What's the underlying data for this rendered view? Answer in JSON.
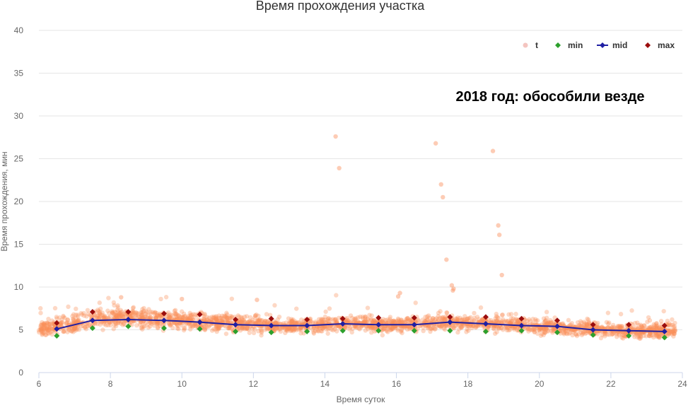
{
  "chart_data": {
    "type": "scatter",
    "title": "Время прохождения участка",
    "annotation": "2018 год: обособили везде",
    "xlabel": "Время суток",
    "ylabel": "Время прохождения, мин",
    "xlim": [
      6,
      24
    ],
    "ylim": [
      0,
      40
    ],
    "x_ticks": [
      6,
      8,
      10,
      12,
      14,
      16,
      18,
      20,
      22,
      24
    ],
    "y_ticks": [
      0,
      5,
      10,
      15,
      20,
      25,
      30,
      35,
      40
    ],
    "grid": "horizontal",
    "legend_position": "top-right",
    "colors": {
      "t": "#fa8e5a",
      "t_legend": "#f4c5c0",
      "min": "#2ca02c",
      "mid": "#1f1fa3",
      "max": "#9b0d0d",
      "grid": "#e6e6e6",
      "axis": "#ccd6eb"
    },
    "series": [
      {
        "name": "t",
        "type": "scatter",
        "band": [
          [
            6.0,
            5.2,
            0.7
          ],
          [
            6.5,
            5.3,
            0.7
          ],
          [
            7.0,
            5.8,
            0.8
          ],
          [
            7.5,
            6.2,
            0.8
          ],
          [
            8.0,
            6.4,
            0.8
          ],
          [
            8.5,
            6.4,
            0.8
          ],
          [
            9.0,
            6.3,
            0.8
          ],
          [
            9.5,
            6.2,
            0.8
          ],
          [
            10.0,
            6.1,
            0.7
          ],
          [
            10.5,
            6.0,
            0.7
          ],
          [
            11.0,
            5.8,
            0.7
          ],
          [
            11.5,
            5.7,
            0.7
          ],
          [
            12.0,
            5.6,
            0.7
          ],
          [
            12.5,
            5.5,
            0.6
          ],
          [
            13.0,
            5.5,
            0.6
          ],
          [
            13.5,
            5.5,
            0.6
          ],
          [
            14.0,
            5.6,
            0.6
          ],
          [
            14.5,
            5.7,
            0.6
          ],
          [
            15.0,
            5.7,
            0.6
          ],
          [
            15.5,
            5.6,
            0.6
          ],
          [
            16.0,
            5.6,
            0.6
          ],
          [
            16.5,
            5.7,
            0.6
          ],
          [
            17.0,
            5.8,
            0.6
          ],
          [
            17.5,
            5.9,
            0.6
          ],
          [
            18.0,
            5.8,
            0.6
          ],
          [
            18.5,
            5.7,
            0.6
          ],
          [
            19.0,
            5.6,
            0.6
          ],
          [
            19.5,
            5.5,
            0.6
          ],
          [
            20.0,
            5.4,
            0.6
          ],
          [
            20.5,
            5.3,
            0.6
          ],
          [
            21.0,
            5.2,
            0.6
          ],
          [
            21.5,
            5.1,
            0.6
          ],
          [
            22.0,
            5.0,
            0.6
          ],
          [
            22.5,
            4.9,
            0.6
          ],
          [
            23.0,
            4.9,
            0.6
          ],
          [
            23.8,
            4.9,
            0.6
          ]
        ],
        "outliers": [
          [
            14.3,
            27.6
          ],
          [
            14.4,
            23.9
          ],
          [
            17.1,
            26.8
          ],
          [
            17.25,
            22.0
          ],
          [
            17.3,
            20.5
          ],
          [
            17.4,
            13.2
          ],
          [
            17.55,
            10.2
          ],
          [
            17.6,
            9.8
          ],
          [
            17.58,
            9.6
          ],
          [
            18.7,
            25.9
          ],
          [
            18.85,
            17.2
          ],
          [
            18.88,
            16.1
          ],
          [
            18.95,
            11.4
          ],
          [
            16.1,
            9.3
          ],
          [
            16.05,
            8.9
          ],
          [
            12.1,
            8.5
          ],
          [
            8.3,
            8.8
          ],
          [
            10.0,
            8.6
          ]
        ]
      },
      {
        "name": "min",
        "type": "scatter",
        "marker": "diamond",
        "points": [
          [
            6.5,
            4.3
          ],
          [
            7.5,
            5.2
          ],
          [
            8.5,
            5.4
          ],
          [
            9.5,
            5.2
          ],
          [
            10.5,
            5.1
          ],
          [
            11.5,
            4.8
          ],
          [
            12.5,
            4.7
          ],
          [
            13.5,
            4.8
          ],
          [
            14.5,
            4.9
          ],
          [
            15.5,
            4.9
          ],
          [
            16.5,
            4.9
          ],
          [
            17.5,
            4.9
          ],
          [
            18.5,
            4.8
          ],
          [
            19.5,
            4.9
          ],
          [
            20.5,
            4.7
          ],
          [
            21.5,
            4.4
          ],
          [
            22.5,
            4.3
          ],
          [
            23.5,
            4.1
          ]
        ]
      },
      {
        "name": "mid",
        "type": "line",
        "marker": "diamond",
        "points": [
          [
            6.5,
            5.1
          ],
          [
            7.5,
            6.1
          ],
          [
            8.5,
            6.2
          ],
          [
            9.5,
            6.1
          ],
          [
            10.5,
            5.9
          ],
          [
            11.5,
            5.6
          ],
          [
            12.5,
            5.5
          ],
          [
            13.5,
            5.5
          ],
          [
            14.5,
            5.7
          ],
          [
            15.5,
            5.6
          ],
          [
            16.5,
            5.6
          ],
          [
            17.5,
            5.9
          ],
          [
            18.5,
            5.7
          ],
          [
            19.5,
            5.5
          ],
          [
            20.5,
            5.4
          ],
          [
            21.5,
            5.0
          ],
          [
            22.5,
            4.9
          ],
          [
            23.5,
            4.8
          ]
        ]
      },
      {
        "name": "max",
        "type": "scatter",
        "marker": "diamond",
        "points": [
          [
            6.5,
            5.8
          ],
          [
            7.5,
            7.1
          ],
          [
            8.5,
            7.1
          ],
          [
            9.5,
            6.9
          ],
          [
            10.5,
            6.8
          ],
          [
            11.5,
            6.2
          ],
          [
            12.5,
            6.3
          ],
          [
            13.5,
            6.2
          ],
          [
            14.5,
            6.3
          ],
          [
            15.5,
            6.4
          ],
          [
            16.5,
            6.4
          ],
          [
            17.5,
            6.5
          ],
          [
            18.5,
            6.5
          ],
          [
            19.5,
            6.3
          ],
          [
            20.5,
            6.1
          ],
          [
            21.5,
            5.6
          ],
          [
            22.5,
            5.6
          ],
          [
            23.5,
            5.5
          ]
        ]
      }
    ]
  }
}
